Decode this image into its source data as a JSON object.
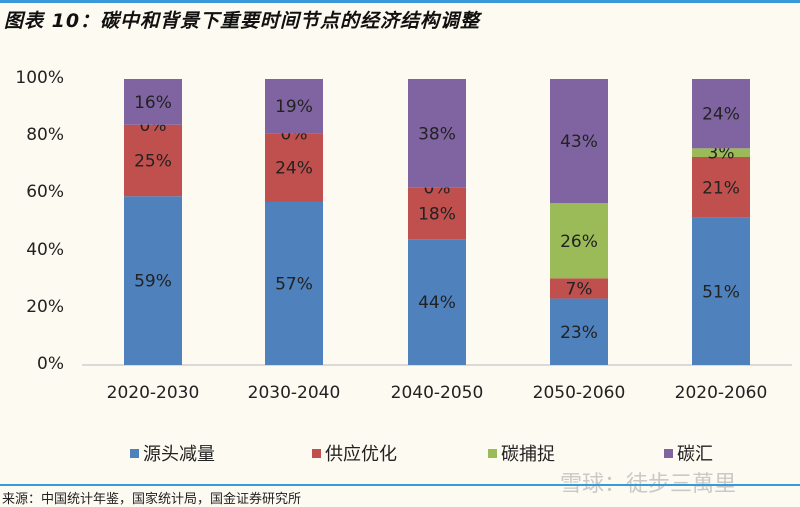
{
  "title": "图表 10：碳中和背景下重要时间节点的经济结构调整",
  "source": "来源：中国统计年鉴，国家统计局，国金证券研究所",
  "watermark": "雪球：徒步三萬里",
  "chart_data": {
    "type": "bar",
    "stacked": true,
    "categories": [
      "2020-2030",
      "2030-2040",
      "2040-2050",
      "2050-2060",
      "2020-2060"
    ],
    "series": [
      {
        "name": "源头减量",
        "color": "#4f81bd",
        "values": [
          59,
          57,
          44,
          23,
          51
        ]
      },
      {
        "name": "供应优化",
        "color": "#c0504d",
        "values": [
          25,
          24,
          18,
          7,
          21
        ]
      },
      {
        "name": "碳捕捉",
        "color": "#9bbb59",
        "values": [
          0,
          0,
          0,
          26,
          3
        ]
      },
      {
        "name": "碳汇",
        "color": "#8064a2",
        "values": [
          16,
          19,
          38,
          43,
          24
        ]
      }
    ],
    "data_labels": true,
    "ylim": [
      0,
      100
    ],
    "yticks": [
      "0%",
      "20%",
      "40%",
      "60%",
      "80%",
      "100%"
    ],
    "legend_position": "bottom",
    "grid": false
  }
}
